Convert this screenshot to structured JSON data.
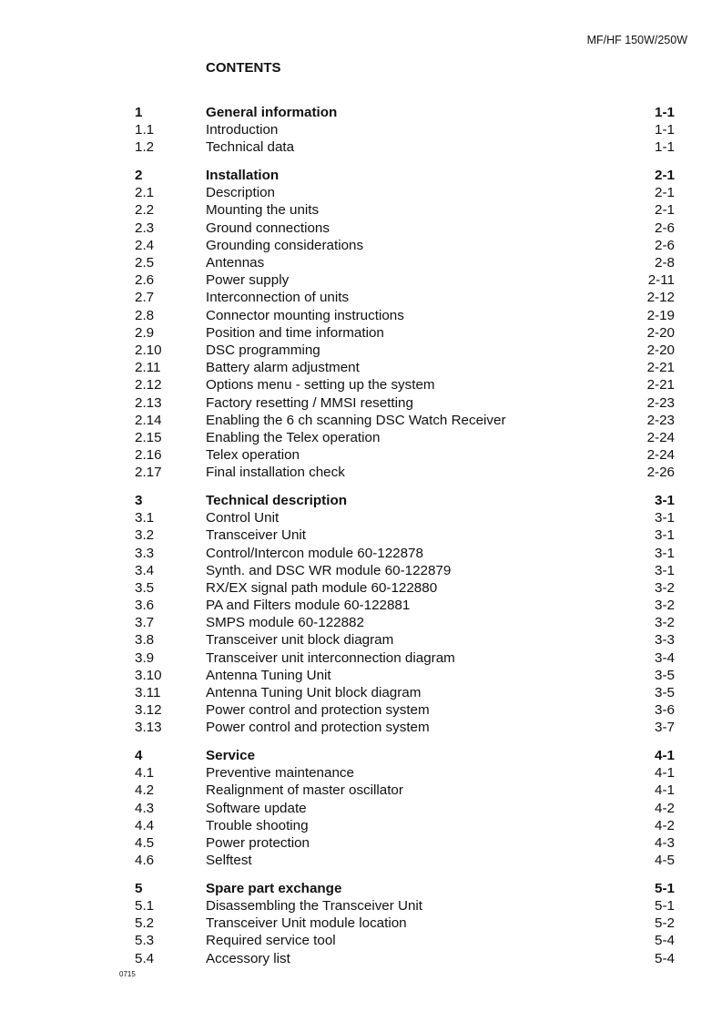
{
  "header": {
    "doc_title": "MF/HF 150W/250W"
  },
  "page_title": "CONTENTS",
  "footer": {
    "code": "0715"
  },
  "sections": [
    {
      "num": "1",
      "title": "General information",
      "page": "1-1",
      "items": [
        {
          "num": "1.1",
          "title": "Introduction",
          "page": "1-1"
        },
        {
          "num": "1.2",
          "title": "Technical data",
          "page": "1-1"
        }
      ]
    },
    {
      "num": "2",
      "title": "Installation",
      "page": "2-1",
      "items": [
        {
          "num": "2.1",
          "title": "Description",
          "page": "2-1"
        },
        {
          "num": "2.2",
          "title": "Mounting the units",
          "page": "2-1"
        },
        {
          "num": "2.3",
          "title": "Ground connections",
          "page": "2-6"
        },
        {
          "num": "2.4",
          "title": "Grounding considerations",
          "page": "2-6"
        },
        {
          "num": "2.5",
          "title": "Antennas",
          "page": "2-8"
        },
        {
          "num": "2.6",
          "title": "Power supply",
          "page": "2-11"
        },
        {
          "num": "2.7",
          "title": "Interconnection of units",
          "page": "2-12"
        },
        {
          "num": "2.8",
          "title": "Connector mounting instructions",
          "page": "2-19"
        },
        {
          "num": "2.9",
          "title": "Position and time information",
          "page": "2-20"
        },
        {
          "num": "2.10",
          "title": "DSC programming",
          "page": "2-20"
        },
        {
          "num": "2.11",
          "title": "Battery alarm adjustment",
          "page": "2-21"
        },
        {
          "num": "2.12",
          "title": "Options menu - setting up the system",
          "page": "2-21"
        },
        {
          "num": "2.13",
          "title": "Factory resetting / MMSI resetting",
          "page": "2-23"
        },
        {
          "num": "2.14",
          "title": "Enabling the 6 ch scanning DSC Watch Receiver",
          "page": "2-23"
        },
        {
          "num": "2.15",
          "title": "Enabling the Telex operation",
          "page": "2-24"
        },
        {
          "num": "2.16",
          "title": "Telex operation",
          "page": "2-24"
        },
        {
          "num": "2.17",
          "title": "Final installation check",
          "page": "2-26"
        }
      ]
    },
    {
      "num": "3",
      "title": "Technical description",
      "page": "3-1",
      "items": [
        {
          "num": "3.1",
          "title": "Control Unit",
          "page": "3-1"
        },
        {
          "num": "3.2",
          "title": "Transceiver Unit",
          "page": "3-1"
        },
        {
          "num": "3.3",
          "title": "Control/Intercon module 60-122878",
          "page": "3-1"
        },
        {
          "num": "3.4",
          "title": "Synth. and DSC WR module 60-122879",
          "page": "3-1"
        },
        {
          "num": "3.5",
          "title": "RX/EX signal path module 60-122880",
          "page": "3-2"
        },
        {
          "num": "3.6",
          "title": "PA and Filters module 60-122881",
          "page": "3-2"
        },
        {
          "num": "3.7",
          "title": "SMPS module 60-122882",
          "page": "3-2"
        },
        {
          "num": "3.8",
          "title": "Transceiver unit block diagram",
          "page": "3-3"
        },
        {
          "num": "3.9",
          "title": "Transceiver unit interconnection diagram",
          "page": "3-4"
        },
        {
          "num": "3.10",
          "title": "Antenna Tuning Unit",
          "page": "3-5"
        },
        {
          "num": "3.11",
          "title": "Antenna Tuning Unit block diagram",
          "page": "3-5"
        },
        {
          "num": "3.12",
          "title": "Power control and protection system",
          "page": "3-6"
        },
        {
          "num": "3.13",
          "title": "Power control and protection system",
          "page": "3-7"
        }
      ]
    },
    {
      "num": "4",
      "title": "Service",
      "page": "4-1",
      "items": [
        {
          "num": "4.1",
          "title": "Preventive maintenance",
          "page": "4-1"
        },
        {
          "num": "4.2",
          "title": "Realignment of master oscillator",
          "page": "4-1"
        },
        {
          "num": "4.3",
          "title": "Software update",
          "page": "4-2"
        },
        {
          "num": "4.4",
          "title": "Trouble shooting",
          "page": "4-2"
        },
        {
          "num": "4.5",
          "title": "Power protection",
          "page": "4-3"
        },
        {
          "num": "4.6",
          "title": "Selftest",
          "page": "4-5"
        }
      ]
    },
    {
      "num": "5",
      "title": "Spare part exchange",
      "page": "5-1",
      "items": [
        {
          "num": "5.1",
          "title": "Disassembling the Transceiver Unit",
          "page": "5-1"
        },
        {
          "num": "5.2",
          "title": "Transceiver Unit module location",
          "page": "5-2"
        },
        {
          "num": "5.3",
          "title": "Required service tool",
          "page": "5-4"
        },
        {
          "num": "5.4",
          "title": "Accessory list",
          "page": "5-4"
        }
      ]
    }
  ]
}
